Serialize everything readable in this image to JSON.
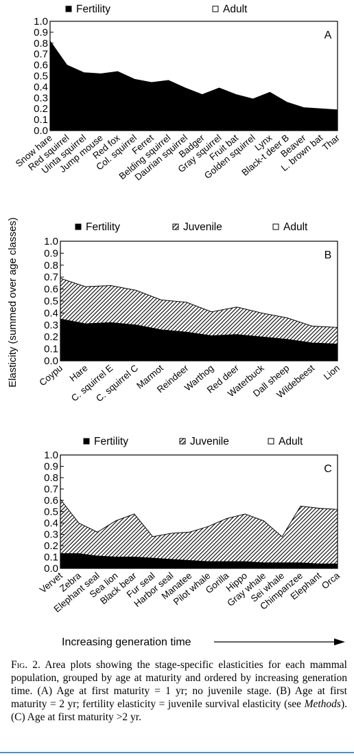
{
  "shared_ylabel": "Elasticity (summed over age classes)",
  "xaxis_footer": "Increasing generation time",
  "caption": {
    "fig_label": "Fig. 2.",
    "text_part1": "Area plots showing the stage-specific elasticities for each mammal population, grouped by age at maturity and ordered by increasing generation time. (A) Age at first maturity = 1 yr; no juvenile stage. (B) Age at first maturity = 2 yr; fertility elasticity = juvenile survival elasticity (see ",
    "text_italic": "Methods",
    "text_part2": "). (C) Age at first maturity >2 yr."
  },
  "colors": {
    "fertility": "#000000",
    "juvenile": "hatched",
    "adult": "#ffffff"
  },
  "chart_data": [
    {
      "type": "area",
      "panel_label": "A",
      "legend": [
        "Fertility",
        "Adult"
      ],
      "ylim": [
        0,
        1.0
      ],
      "yticks": [
        "0.0",
        "0.1",
        "0.2",
        "0.3",
        "0.4",
        "0.5",
        "0.6",
        "0.7",
        "0.8",
        "0.9",
        "1.0"
      ],
      "categories": [
        "Snow hare",
        "Red squirrel",
        "Uinta squirrel",
        "Jump mouse",
        "Red fox",
        "Col. squirrel",
        "Ferret",
        "Belding squirrel",
        "Daurian squirrel",
        "Badger",
        "Gray squirrel",
        "Fruit bat",
        "Golden squirrel",
        "Lynx",
        "Black-t deer B",
        "Beaver",
        "L. brown bat",
        "Thar"
      ],
      "series": [
        {
          "name": "Fertility",
          "values": [
            0.82,
            0.6,
            0.53,
            0.52,
            0.54,
            0.47,
            0.44,
            0.46,
            0.39,
            0.33,
            0.39,
            0.33,
            0.29,
            0.35,
            0.26,
            0.21,
            0.2,
            0.19
          ]
        },
        {
          "name": "Adult",
          "values": [
            0.18,
            0.4,
            0.47,
            0.48,
            0.46,
            0.53,
            0.56,
            0.54,
            0.61,
            0.67,
            0.61,
            0.67,
            0.71,
            0.65,
            0.74,
            0.79,
            0.8,
            0.81
          ]
        }
      ]
    },
    {
      "type": "area",
      "panel_label": "B",
      "legend": [
        "Fertility",
        "Juvenile",
        "Adult"
      ],
      "ylim": [
        0,
        1.0
      ],
      "yticks": [
        "0.0",
        "0.1",
        "0.2",
        "0.3",
        "0.4",
        "0.5",
        "0.6",
        "0.7",
        "0.8",
        "0.9",
        "1.0"
      ],
      "categories": [
        "Coypu",
        "Hare",
        "C. squirrel E",
        "C. squirrel C",
        "Marmot",
        "Reindeer",
        "Warthog",
        "Red deer",
        "Waterbuck",
        "Dall sheep",
        "Wildebeest",
        "Lion"
      ],
      "series": [
        {
          "name": "Fertility",
          "values": [
            0.35,
            0.31,
            0.32,
            0.3,
            0.26,
            0.24,
            0.21,
            0.22,
            0.2,
            0.18,
            0.15,
            0.14
          ]
        },
        {
          "name": "Juvenile",
          "values": [
            0.34,
            0.31,
            0.31,
            0.29,
            0.25,
            0.25,
            0.2,
            0.23,
            0.2,
            0.18,
            0.14,
            0.14
          ]
        },
        {
          "name": "Adult",
          "values": [
            0.31,
            0.38,
            0.37,
            0.41,
            0.49,
            0.51,
            0.59,
            0.55,
            0.6,
            0.64,
            0.71,
            0.72
          ]
        }
      ]
    },
    {
      "type": "area",
      "panel_label": "C",
      "legend": [
        "Fertility",
        "Juvenile",
        "Adult"
      ],
      "ylim": [
        0,
        1.0
      ],
      "yticks": [
        "0.0",
        "0.1",
        "0.2",
        "0.3",
        "0.4",
        "0.5",
        "0.6",
        "0.7",
        "0.8",
        "0.9",
        "1.0"
      ],
      "categories": [
        "Vervet",
        "Zebra",
        "Elephant seal",
        "Sea lion",
        "Black bear",
        "Fur seal",
        "Harbor seal",
        "Manatee",
        "Pilot whale",
        "Gorilla",
        "Hippo",
        "Gray whale",
        "Sei whale",
        "Chimpanzee",
        "Elephant",
        "Orca"
      ],
      "series": [
        {
          "name": "Fertility",
          "values": [
            0.13,
            0.13,
            0.11,
            0.1,
            0.1,
            0.09,
            0.08,
            0.07,
            0.06,
            0.06,
            0.06,
            0.05,
            0.05,
            0.05,
            0.04,
            0.04
          ]
        },
        {
          "name": "Juvenile",
          "values": [
            0.48,
            0.27,
            0.21,
            0.32,
            0.38,
            0.19,
            0.23,
            0.25,
            0.31,
            0.38,
            0.42,
            0.37,
            0.23,
            0.5,
            0.49,
            0.48
          ]
        },
        {
          "name": "Adult",
          "values": [
            0.39,
            0.6,
            0.68,
            0.58,
            0.52,
            0.72,
            0.69,
            0.68,
            0.63,
            0.56,
            0.52,
            0.58,
            0.72,
            0.45,
            0.47,
            0.48
          ]
        }
      ]
    }
  ]
}
